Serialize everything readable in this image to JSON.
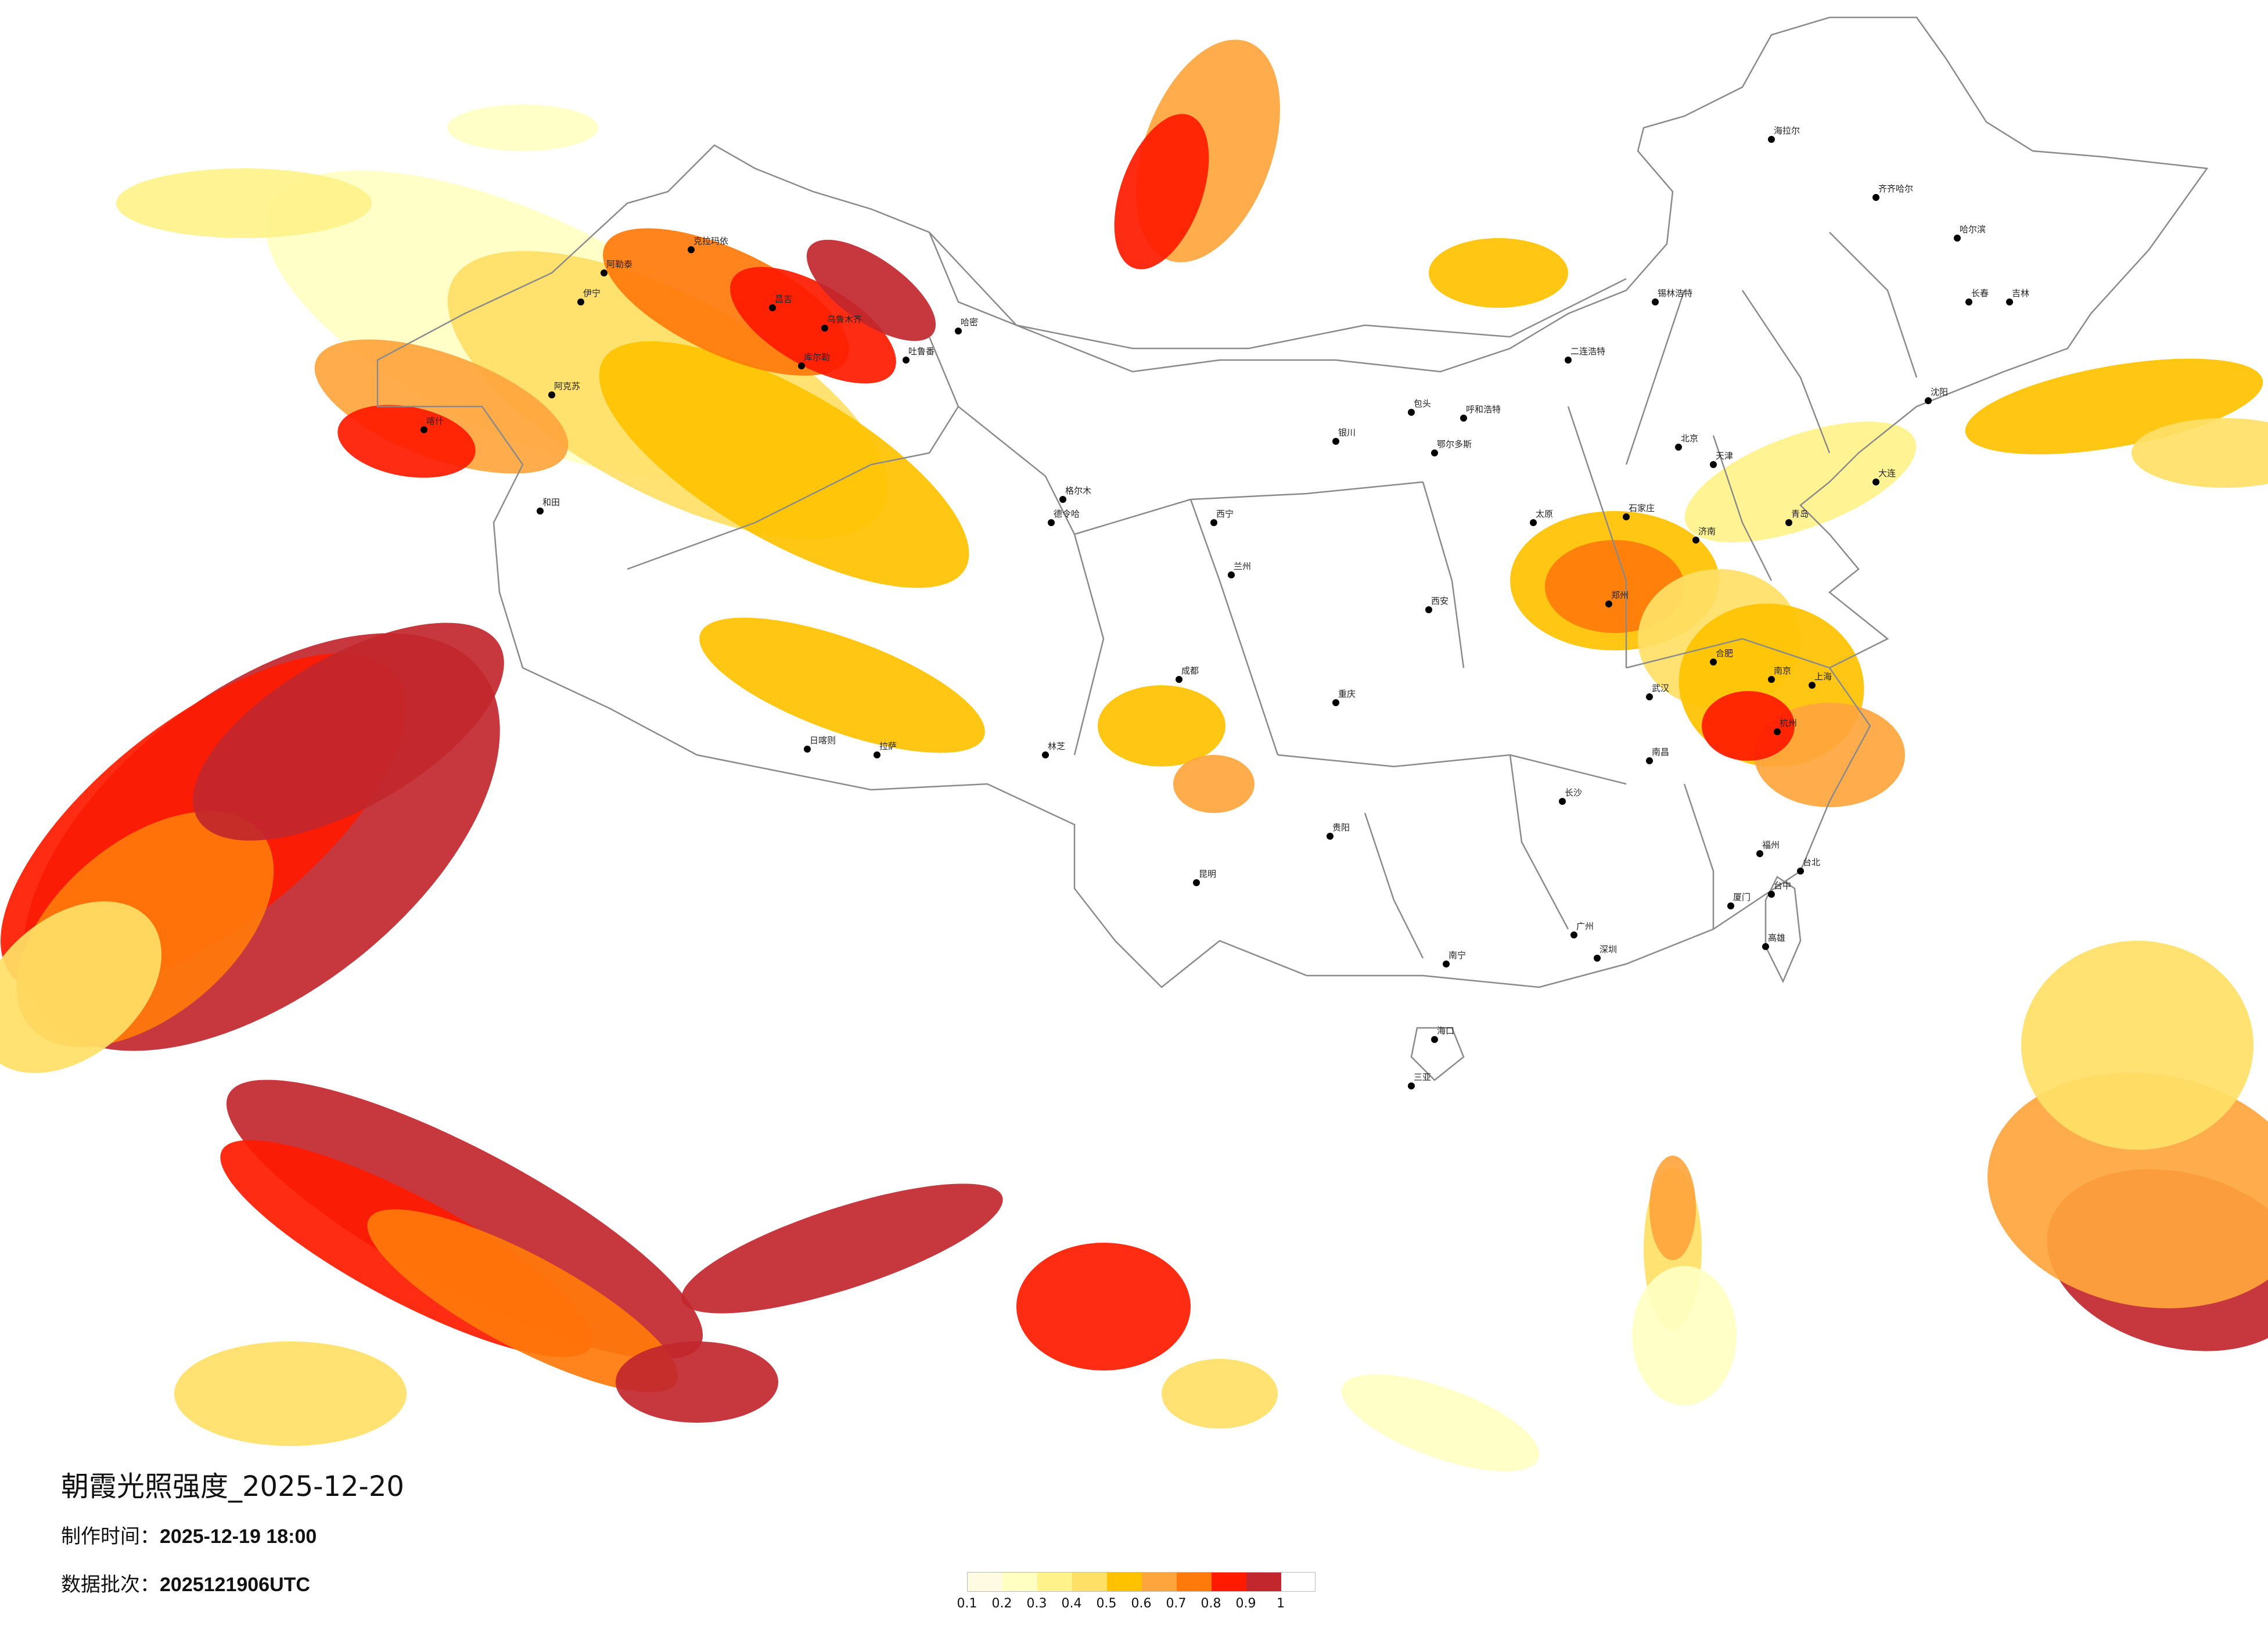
{
  "map": {
    "title": "朝霞光照强度_2025-12-20",
    "production_label": "制作时间：",
    "production_time": "2025-12-19 18:00",
    "batch_label": "数据批次：",
    "batch": "2025121906UTC"
  },
  "legend": {
    "colors": [
      "#fffbe3",
      "#ffffc2",
      "#fff28a",
      "#ffe066",
      "#ffc200",
      "#ffa53d",
      "#ff7a0a",
      "#ff1a00",
      "#c1272d"
    ],
    "ticks": [
      "0.1",
      "0.2",
      "0.3",
      "0.4",
      "0.5",
      "0.6",
      "0.7",
      "0.8",
      "0.9",
      "1"
    ]
  },
  "cities": [
    "阿勒泰",
    "伊宁",
    "克拉玛依",
    "昌吉",
    "乌鲁木齐",
    "哈密",
    "吐鲁番",
    "库尔勒",
    "阿克苏",
    "喀什",
    "和田",
    "格尔木",
    "西宁",
    "德令哈",
    "兰州",
    "银川",
    "呼和浩特",
    "包头",
    "鄂尔多斯",
    "二连浩特",
    "锡林浩特",
    "海拉尔",
    "齐齐哈尔",
    "哈尔滨",
    "长春",
    "吉林",
    "沈阳",
    "大连",
    "北京",
    "天津",
    "石家庄",
    "太原",
    "济南",
    "青岛",
    "郑州",
    "西安",
    "武汉",
    "南京",
    "上海",
    "杭州",
    "合肥",
    "南昌",
    "长沙",
    "福州",
    "厦门",
    "广州",
    "深圳",
    "南宁",
    "海口",
    "三亚",
    "贵阳",
    "昆明",
    "成都",
    "重庆",
    "拉萨",
    "日喀则",
    "林芝",
    "台北",
    "台中",
    "高雄"
  ]
}
